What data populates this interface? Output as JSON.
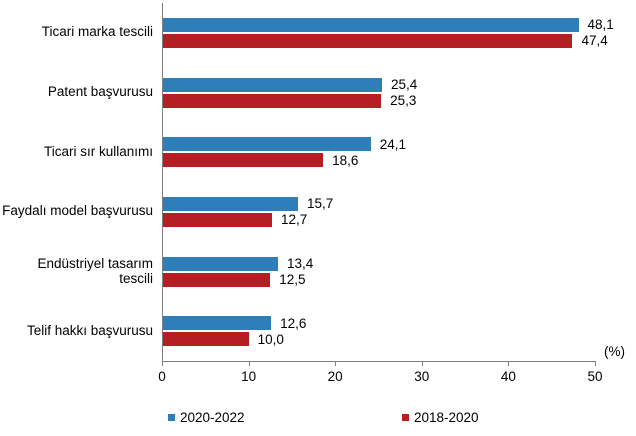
{
  "chart_data": {
    "type": "bar",
    "orientation": "horizontal",
    "title": "",
    "categories": [
      "Ticari marka tescili",
      "Patent başvurusu",
      "Ticari sır kullanımı",
      "Faydalı model başvurusu",
      "Endüstriyel tasarım tescili",
      "Telif hakkı başvurusu"
    ],
    "series": [
      {
        "name": "2020-2022",
        "color": "#2E7FB9",
        "values": [
          48.1,
          25.4,
          24.1,
          15.7,
          13.4,
          12.6
        ],
        "labels": [
          "48,1",
          "25,4",
          "24,1",
          "15,7",
          "13,4",
          "12,6"
        ]
      },
      {
        "name": "2018-2020",
        "color": "#B51F24",
        "values": [
          47.4,
          25.3,
          18.6,
          12.7,
          12.5,
          10.0
        ],
        "labels": [
          "47,4",
          "25,3",
          "18,6",
          "12,7",
          "12,5",
          "10,0"
        ]
      }
    ],
    "xlabel": "(%)",
    "ylabel": "",
    "xlim": [
      0,
      50
    ],
    "xticks": [
      0,
      10,
      20,
      30,
      40,
      50
    ],
    "grid": false,
    "legend_position": "bottom",
    "axis_color": "#7f7f7f"
  }
}
